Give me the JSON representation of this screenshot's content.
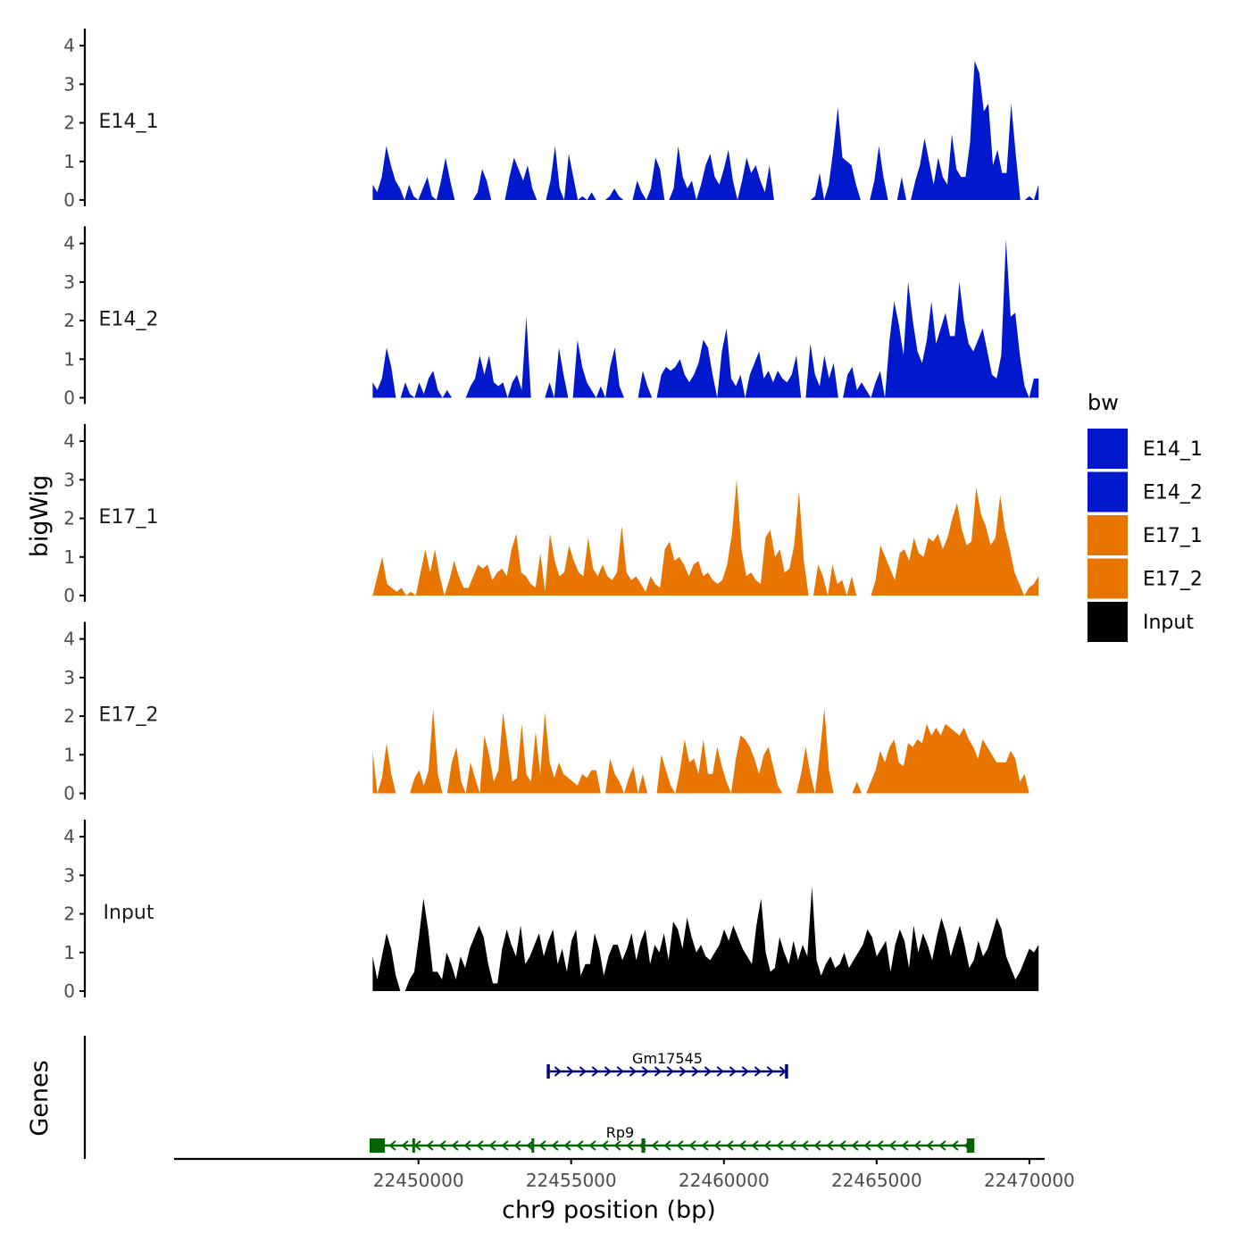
{
  "chart_data": {
    "type": "area",
    "title": "",
    "xlabel": "chr9 position (bp)",
    "ylabel": "bigWig",
    "genes_label": "Genes",
    "xlim": [
      22442000,
      22470500
    ],
    "ylim": [
      0,
      4.35
    ],
    "data_x_range": [
      22448500,
      22470300
    ],
    "x_ticks": [
      22450000,
      22455000,
      22460000,
      22465000,
      22470000
    ],
    "x_tick_labels": [
      "22450000",
      "22455000",
      "22460000",
      "22465000",
      "22470000"
    ],
    "y_ticks": [
      0,
      1,
      2,
      3,
      4
    ],
    "y_tick_labels": [
      "0",
      "1",
      "2",
      "3",
      "4"
    ],
    "legend": {
      "title": "bw",
      "position": "right",
      "entries": [
        {
          "label": "E14_1",
          "color": "#0019CC"
        },
        {
          "label": "E14_2",
          "color": "#0019CC"
        },
        {
          "label": "E17_1",
          "color": "#E87500"
        },
        {
          "label": "E17_2",
          "color": "#E87500"
        },
        {
          "label": "Input",
          "color": "#000000"
        }
      ]
    },
    "series": [
      {
        "name": "E14_1",
        "color": "#0019CC",
        "values": [
          0.4,
          0.2,
          0.6,
          1.4,
          0.9,
          0.5,
          0.3,
          0.0,
          0.4,
          0.1,
          0.0,
          0.3,
          0.6,
          0.1,
          0.0,
          0.5,
          1.1,
          0.5,
          0.0,
          0.0,
          0.0,
          0.0,
          0.0,
          0.2,
          0.8,
          0.5,
          0.0,
          0.0,
          0.0,
          0.0,
          0.6,
          1.1,
          0.8,
          0.5,
          0.9,
          0.3,
          0.0,
          0.0,
          0.0,
          0.5,
          1.4,
          0.3,
          0.0,
          1.2,
          0.6,
          0.0,
          0.1,
          0.0,
          0.2,
          0.0,
          0.0,
          0.0,
          0.1,
          0.3,
          0.1,
          0.0,
          0.0,
          0.0,
          0.5,
          0.2,
          0.0,
          0.3,
          1.1,
          0.8,
          0.0,
          0.0,
          0.3,
          1.4,
          0.6,
          0.3,
          0.5,
          0.0,
          0.4,
          0.9,
          1.2,
          0.6,
          0.4,
          0.8,
          1.3,
          0.5,
          0.0,
          0.5,
          1.1,
          0.7,
          0.9,
          0.5,
          0.2,
          0.9,
          0.0,
          0.0,
          0.0,
          0.0,
          0.0,
          0.0,
          0.0,
          0.0,
          0.0,
          0.1,
          0.7,
          0.0,
          0.4,
          1.3,
          2.4,
          1.1,
          1.0,
          0.9,
          0.4,
          0.0,
          0.0,
          0.0,
          0.5,
          1.4,
          0.6,
          0.0,
          0.0,
          0.0,
          0.6,
          0.0,
          0.0,
          0.5,
          0.9,
          1.6,
          1.0,
          0.4,
          1.1,
          0.6,
          0.4,
          1.7,
          0.8,
          0.6,
          0.6,
          1.5,
          3.6,
          3.3,
          2.3,
          2.5,
          0.9,
          1.3,
          0.7,
          0.7,
          2.5,
          1.2,
          0.0,
          0.0,
          0.1,
          0.0,
          0.4
        ]
      },
      {
        "name": "E14_2",
        "color": "#0019CC",
        "values": [
          0.4,
          0.2,
          0.5,
          1.3,
          0.8,
          0.0,
          0.0,
          0.4,
          0.1,
          0.0,
          0.4,
          0.1,
          0.5,
          0.7,
          0.2,
          0.0,
          0.2,
          0.0,
          0.0,
          0.0,
          0.0,
          0.3,
          0.5,
          1.1,
          0.6,
          1.1,
          0.4,
          0.3,
          0.4,
          0.0,
          0.4,
          0.6,
          0.2,
          2.1,
          0.0,
          0.0,
          0.0,
          0.0,
          0.4,
          0.0,
          1.3,
          0.6,
          0.0,
          0.0,
          1.5,
          0.8,
          0.4,
          0.2,
          0.0,
          0.3,
          0.0,
          0.8,
          1.3,
          0.3,
          0.0,
          0.0,
          0.0,
          0.0,
          0.7,
          0.3,
          0.0,
          0.0,
          0.6,
          0.8,
          0.7,
          0.8,
          1.0,
          0.6,
          0.4,
          0.6,
          0.9,
          1.5,
          1.3,
          0.6,
          0.0,
          1.2,
          1.8,
          0.5,
          0.3,
          0.6,
          0.0,
          0.6,
          0.9,
          1.2,
          0.5,
          0.7,
          0.4,
          0.7,
          0.5,
          0.4,
          0.6,
          1.1,
          0.0,
          0.0,
          1.4,
          0.6,
          0.3,
          1.1,
          0.5,
          0.9,
          0.0,
          0.0,
          0.6,
          0.8,
          0.2,
          0.4,
          0.2,
          0.0,
          0.4,
          0.7,
          0.0,
          1.5,
          2.5,
          1.9,
          1.1,
          3.0,
          2.0,
          1.2,
          0.9,
          1.5,
          2.5,
          1.4,
          1.8,
          2.2,
          1.6,
          1.6,
          3.0,
          2.0,
          1.4,
          1.2,
          1.5,
          1.8,
          1.2,
          0.6,
          0.5,
          1.1,
          4.1,
          2.1,
          2.2,
          1.1,
          0.3,
          0.0,
          0.5,
          0.5
        ]
      },
      {
        "name": "E17_1",
        "color": "#E87500",
        "values": [
          0.0,
          0.5,
          1.0,
          0.3,
          0.2,
          0.1,
          0.2,
          0.0,
          0.1,
          0.0,
          0.6,
          1.2,
          0.6,
          1.2,
          0.5,
          0.0,
          0.4,
          0.9,
          0.5,
          0.2,
          0.2,
          0.5,
          0.8,
          0.7,
          0.8,
          0.4,
          0.6,
          0.7,
          0.5,
          1.2,
          1.6,
          0.6,
          0.5,
          0.3,
          0.2,
          1.1,
          0.1,
          1.6,
          0.9,
          0.5,
          0.6,
          1.3,
          0.9,
          0.6,
          0.5,
          1.5,
          0.7,
          0.5,
          0.8,
          0.5,
          0.4,
          0.6,
          1.8,
          0.6,
          0.4,
          0.5,
          0.3,
          0.1,
          0.5,
          0.3,
          0.2,
          1.2,
          1.4,
          0.9,
          1.0,
          0.8,
          0.5,
          0.8,
          0.9,
          0.5,
          0.6,
          0.4,
          0.3,
          0.4,
          0.8,
          1.6,
          3.0,
          1.2,
          0.5,
          0.6,
          0.4,
          0.3,
          1.5,
          1.7,
          1.0,
          1.2,
          0.6,
          0.7,
          1.3,
          2.7,
          0.9,
          0.0,
          0.0,
          0.8,
          0.5,
          0.0,
          0.8,
          0.3,
          0.4,
          0.0,
          0.5,
          0.0,
          0.0,
          0.0,
          0.0,
          0.4,
          1.3,
          1.0,
          0.7,
          0.4,
          1.1,
          1.2,
          0.9,
          1.5,
          1.1,
          1.0,
          1.5,
          1.4,
          1.6,
          1.2,
          1.5,
          2.0,
          2.4,
          1.7,
          1.3,
          1.4,
          2.8,
          2.1,
          1.8,
          1.3,
          1.5,
          2.6,
          1.7,
          1.2,
          0.6,
          0.3,
          0.0,
          0.2,
          0.3,
          0.5
        ]
      },
      {
        "name": "E17_2",
        "color": "#E87500",
        "values": [
          1.1,
          0.0,
          0.4,
          1.3,
          0.5,
          0.0,
          0.0,
          0.0,
          0.0,
          0.4,
          0.6,
          0.2,
          0.6,
          2.2,
          0.5,
          0.0,
          0.0,
          0.8,
          1.2,
          0.3,
          0.0,
          0.8,
          0.4,
          0.0,
          1.5,
          1.0,
          0.3,
          0.6,
          2.1,
          1.2,
          0.3,
          0.4,
          1.8,
          0.5,
          0.3,
          1.6,
          0.5,
          2.1,
          0.8,
          0.4,
          0.8,
          0.5,
          0.4,
          0.3,
          0.2,
          0.5,
          0.4,
          0.6,
          0.6,
          0.0,
          0.0,
          0.9,
          0.5,
          0.3,
          0.0,
          0.4,
          0.7,
          0.0,
          0.5,
          0.0,
          0.0,
          0.0,
          1.0,
          0.6,
          0.2,
          0.0,
          0.6,
          1.4,
          0.8,
          0.9,
          0.5,
          1.4,
          0.5,
          0.5,
          1.2,
          0.7,
          0.3,
          0.0,
          0.9,
          1.5,
          1.4,
          1.2,
          0.9,
          0.5,
          1.0,
          1.2,
          0.7,
          0.2,
          0.0,
          0.0,
          0.0,
          0.0,
          0.5,
          1.2,
          0.5,
          0.0,
          1.0,
          2.2,
          0.6,
          0.0,
          0.0,
          0.0,
          0.0,
          0.0,
          0.3,
          0.0,
          0.0,
          0.3,
          0.6,
          1.1,
          0.8,
          1.2,
          1.4,
          0.8,
          0.7,
          1.3,
          1.2,
          1.4,
          1.3,
          1.8,
          1.5,
          1.7,
          1.5,
          1.8,
          1.7,
          1.6,
          1.5,
          1.7,
          1.4,
          1.2,
          0.9,
          1.4,
          1.2,
          1.0,
          0.8,
          0.8,
          0.8,
          1.1,
          0.9,
          0.3,
          0.5,
          0.0,
          0.0,
          0.0
        ]
      },
      {
        "name": "Input",
        "color": "#000000",
        "values": [
          0.9,
          0.3,
          0.9,
          1.5,
          1.1,
          0.4,
          0.0,
          0.0,
          0.3,
          0.5,
          1.4,
          2.4,
          1.6,
          0.5,
          0.5,
          0.3,
          1.0,
          0.7,
          0.3,
          0.9,
          0.6,
          1.1,
          1.4,
          1.7,
          1.4,
          0.7,
          0.2,
          0.2,
          1.1,
          1.6,
          1.2,
          0.9,
          1.7,
          0.7,
          0.9,
          1.2,
          1.5,
          0.9,
          1.3,
          1.6,
          0.7,
          1.1,
          0.5,
          1.3,
          1.6,
          0.4,
          0.7,
          0.7,
          1.5,
          1.1,
          0.4,
          0.9,
          1.2,
          1.2,
          0.8,
          1.1,
          1.5,
          0.8,
          1.3,
          1.6,
          0.7,
          1.2,
          1.0,
          1.5,
          0.8,
          1.8,
          1.6,
          1.1,
          1.9,
          1.4,
          1.0,
          1.2,
          0.9,
          0.8,
          1.0,
          1.2,
          1.6,
          1.3,
          1.7,
          1.4,
          1.1,
          0.9,
          0.7,
          1.7,
          2.4,
          1.0,
          0.5,
          0.6,
          1.4,
          1.0,
          0.7,
          1.3,
          0.8,
          1.2,
          0.9,
          2.7,
          0.8,
          0.4,
          0.7,
          0.9,
          0.6,
          0.7,
          1.0,
          0.6,
          0.8,
          1.0,
          1.2,
          1.6,
          1.4,
          0.9,
          1.1,
          1.3,
          0.5,
          1.2,
          1.6,
          1.3,
          0.6,
          1.7,
          1.0,
          1.5,
          1.2,
          0.8,
          1.4,
          1.9,
          1.5,
          0.9,
          1.3,
          1.7,
          1.2,
          0.6,
          0.8,
          1.3,
          0.9,
          1.1,
          1.5,
          1.9,
          1.6,
          0.9,
          0.6,
          0.3,
          0.5,
          0.8,
          1.1,
          1.0,
          1.2
        ]
      }
    ],
    "genes": [
      {
        "name": "Gm17545",
        "start": 22454200,
        "end": 22462100,
        "strand": "+",
        "color": "#00007F",
        "exons": [
          [
            22454200,
            22454300
          ],
          [
            22462000,
            22462100
          ]
        ]
      },
      {
        "name": "Rp9",
        "start": 22448400,
        "end": 22468200,
        "strand": "-",
        "color": "#006400",
        "exons": [
          [
            22448400,
            22448900
          ],
          [
            22449800,
            22449860
          ],
          [
            22453700,
            22453760
          ],
          [
            22457300,
            22457420
          ],
          [
            22467950,
            22468200
          ]
        ]
      }
    ]
  }
}
